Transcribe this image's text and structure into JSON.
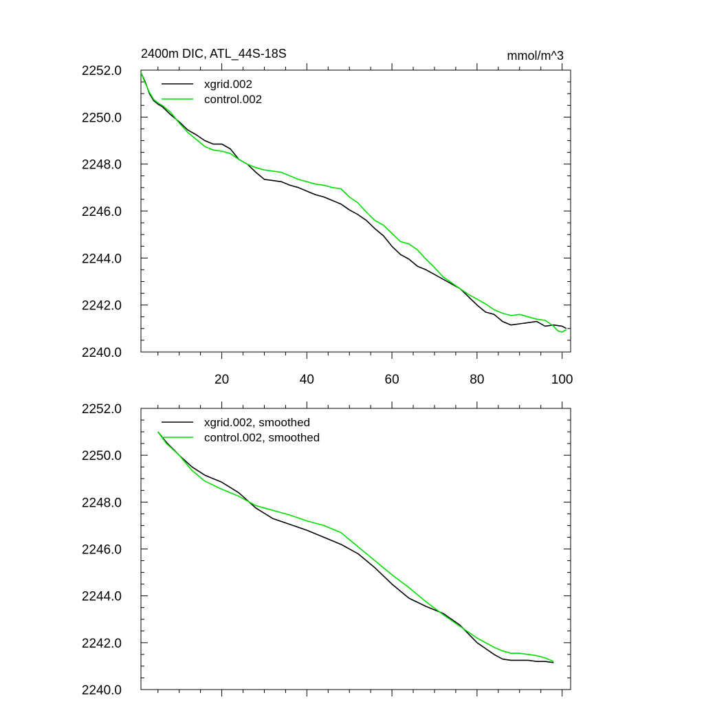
{
  "colors": {
    "series_1": "#000000",
    "series_2": "#00dd00"
  },
  "chart_data": [
    {
      "type": "line",
      "title": "2400m DIC, ATL_44S-18S",
      "units": "mmol/m^3",
      "xlim": [
        1,
        102
      ],
      "ylim": [
        2240,
        2252
      ],
      "xticks": [
        20,
        40,
        60,
        80,
        100
      ],
      "xtick_labels": [
        "20",
        "40",
        "60",
        "80",
        "100"
      ],
      "yticks": [
        2240,
        2242,
        2244,
        2246,
        2248,
        2250,
        2252
      ],
      "ytick_labels": [
        "2240.0",
        "2242.0",
        "2244.0",
        "2246.0",
        "2248.0",
        "2250.0",
        "2252.0"
      ],
      "legend": "top-left",
      "series": [
        {
          "name": "xgrid.002",
          "color": "#000000",
          "x": [
            1,
            2,
            3,
            4,
            5,
            6,
            8,
            10,
            12,
            14,
            16,
            18,
            20,
            22,
            24,
            26,
            28,
            30,
            32,
            34,
            36,
            38,
            40,
            42,
            44,
            46,
            48,
            50,
            52,
            54,
            56,
            58,
            60,
            62,
            64,
            66,
            68,
            70,
            72,
            74,
            76,
            78,
            80,
            82,
            84,
            86,
            88,
            90,
            92,
            94,
            96,
            98,
            100,
            101
          ],
          "y": [
            2251.9,
            2251.5,
            2251.0,
            2250.7,
            2250.55,
            2250.45,
            2250.1,
            2249.8,
            2249.45,
            2249.25,
            2249.0,
            2248.85,
            2248.85,
            2248.65,
            2248.2,
            2248.0,
            2247.65,
            2247.35,
            2247.3,
            2247.25,
            2247.1,
            2247.0,
            2246.85,
            2246.7,
            2246.6,
            2246.45,
            2246.3,
            2246.05,
            2245.85,
            2245.6,
            2245.25,
            2244.95,
            2244.5,
            2244.15,
            2243.95,
            2243.65,
            2243.5,
            2243.3,
            2243.1,
            2242.9,
            2242.7,
            2242.35,
            2242.0,
            2241.7,
            2241.6,
            2241.3,
            2241.15,
            2241.2,
            2241.25,
            2241.3,
            2241.1,
            2241.15,
            2241.1,
            2241.0
          ]
        },
        {
          "name": "control.002",
          "color": "#00dd00",
          "x": [
            1,
            2,
            3,
            4,
            5,
            6,
            8,
            10,
            12,
            14,
            16,
            18,
            20,
            22,
            24,
            26,
            28,
            30,
            32,
            34,
            36,
            38,
            40,
            42,
            44,
            46,
            48,
            50,
            52,
            54,
            56,
            58,
            60,
            62,
            64,
            66,
            68,
            70,
            72,
            74,
            76,
            78,
            80,
            82,
            84,
            86,
            88,
            90,
            92,
            94,
            96,
            98,
            99,
            100,
            101
          ],
          "y": [
            2251.9,
            2251.45,
            2251.05,
            2250.75,
            2250.6,
            2250.5,
            2250.2,
            2249.75,
            2249.35,
            2249.05,
            2248.75,
            2248.6,
            2248.55,
            2248.45,
            2248.2,
            2248.0,
            2247.85,
            2247.75,
            2247.7,
            2247.65,
            2247.5,
            2247.35,
            2247.25,
            2247.15,
            2247.1,
            2247.0,
            2246.95,
            2246.6,
            2246.35,
            2245.95,
            2245.6,
            2245.4,
            2245.05,
            2244.7,
            2244.6,
            2244.35,
            2243.95,
            2243.6,
            2243.2,
            2242.95,
            2242.7,
            2242.45,
            2242.25,
            2242.05,
            2241.8,
            2241.65,
            2241.55,
            2241.6,
            2241.5,
            2241.4,
            2241.35,
            2241.1,
            2240.9,
            2240.85,
            2240.95
          ]
        }
      ]
    },
    {
      "type": "line",
      "title": "",
      "units": "",
      "xlim": [
        1,
        102
      ],
      "ylim": [
        2240,
        2252
      ],
      "xticks": [
        20,
        40,
        60,
        80,
        100
      ],
      "xtick_labels": [],
      "yticks": [
        2240,
        2242,
        2244,
        2246,
        2248,
        2250,
        2252
      ],
      "ytick_labels": [
        "2240.0",
        "2242.0",
        "2244.0",
        "2246.0",
        "2248.0",
        "2250.0",
        "2252.0"
      ],
      "legend": "top-left",
      "series": [
        {
          "name": "xgrid.002, smoothed",
          "color": "#000000",
          "x": [
            5,
            7,
            10,
            13,
            16,
            20,
            24,
            28,
            32,
            36,
            40,
            44,
            48,
            52,
            56,
            60,
            64,
            68,
            72,
            76,
            80,
            84,
            86,
            88,
            90,
            92,
            94,
            96,
            98
          ],
          "y": [
            2251.0,
            2250.55,
            2250.0,
            2249.5,
            2249.15,
            2248.85,
            2248.4,
            2247.75,
            2247.3,
            2247.05,
            2246.8,
            2246.5,
            2246.2,
            2245.8,
            2245.2,
            2244.5,
            2243.9,
            2243.55,
            2243.25,
            2242.75,
            2242.0,
            2241.5,
            2241.3,
            2241.25,
            2241.25,
            2241.25,
            2241.2,
            2241.2,
            2241.15
          ]
        },
        {
          "name": "control.002, smoothed",
          "color": "#00dd00",
          "x": [
            5,
            7,
            10,
            13,
            16,
            20,
            24,
            28,
            32,
            36,
            40,
            44,
            48,
            52,
            56,
            60,
            64,
            68,
            72,
            76,
            80,
            84,
            86,
            88,
            90,
            92,
            94,
            96,
            98
          ],
          "y": [
            2251.0,
            2250.5,
            2250.0,
            2249.35,
            2248.9,
            2248.55,
            2248.25,
            2247.85,
            2247.65,
            2247.45,
            2247.2,
            2247.0,
            2246.7,
            2246.1,
            2245.5,
            2244.9,
            2244.35,
            2243.75,
            2243.2,
            2242.7,
            2242.2,
            2241.8,
            2241.65,
            2241.55,
            2241.55,
            2241.5,
            2241.45,
            2241.35,
            2241.2
          ]
        }
      ]
    }
  ]
}
